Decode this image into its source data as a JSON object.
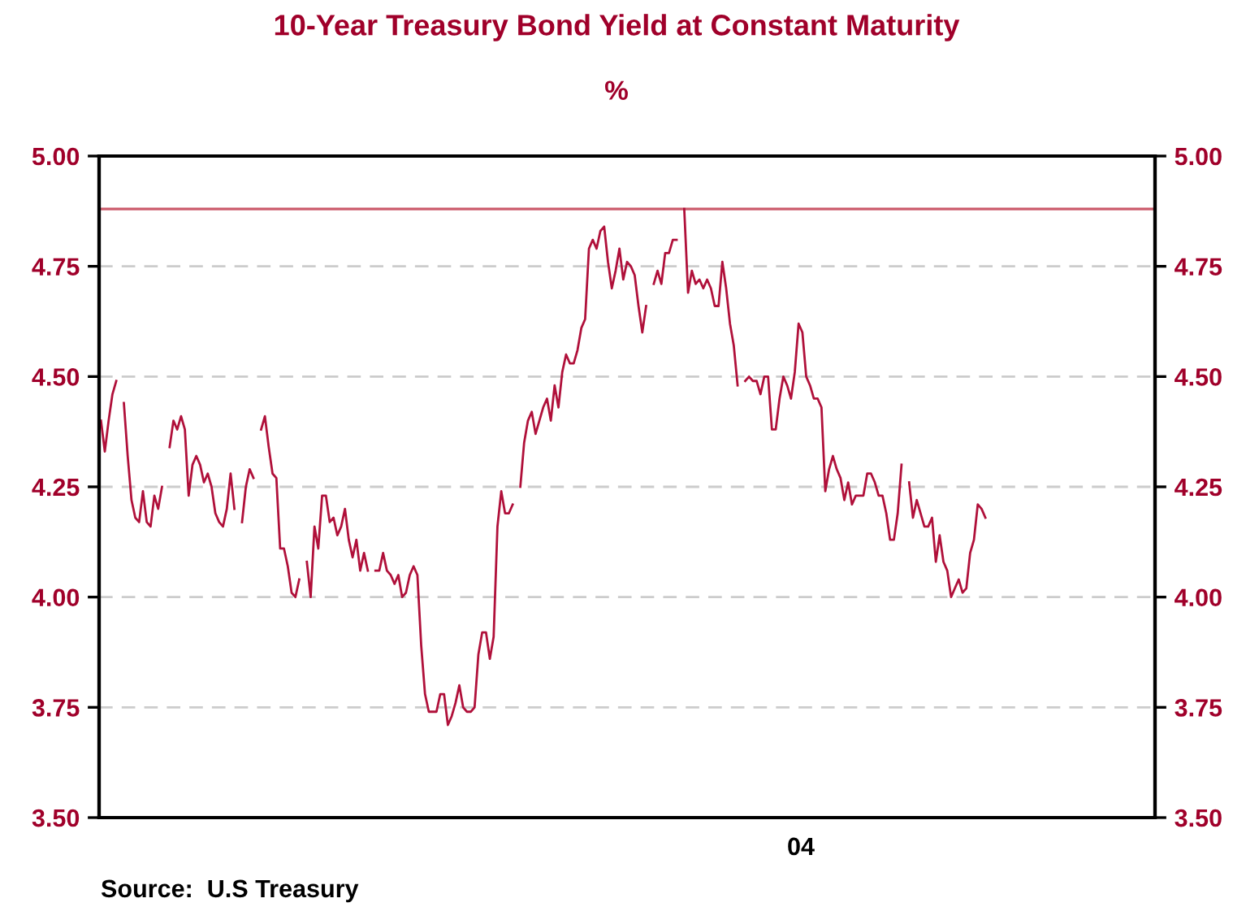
{
  "chart_data": {
    "type": "line",
    "title": "10-Year Treasury Bond Yield at Constant Maturity",
    "subtitle": "%",
    "annotations": [
      "04",
      "Source:  U.S Treasury"
    ],
    "categories": [
      null,
      null,
      null,
      null,
      null,
      null,
      null,
      null,
      null,
      null,
      null,
      null,
      null,
      null,
      null,
      null,
      null,
      null,
      null,
      null,
      null,
      null,
      null,
      null,
      null,
      null,
      null,
      null,
      null,
      null,
      null,
      null,
      null,
      null,
      null,
      null,
      null,
      null,
      null,
      null,
      null,
      null,
      null,
      null,
      null,
      null,
      null,
      null,
      null,
      null,
      null,
      null,
      null,
      null,
      null,
      null,
      null,
      null,
      null,
      null,
      null,
      null,
      null,
      null,
      null,
      null,
      null,
      null,
      null,
      null,
      null,
      null,
      null,
      null,
      null,
      null,
      null,
      null,
      null,
      null,
      null,
      null,
      null,
      null,
      null,
      null,
      null,
      null,
      null,
      null,
      null,
      null,
      null,
      null,
      null,
      null,
      null,
      null,
      null,
      null,
      null,
      null,
      null,
      null,
      null,
      null,
      null,
      null,
      null,
      null,
      null,
      null,
      null,
      null,
      null,
      null,
      null,
      null,
      null,
      null,
      null,
      null,
      null,
      null,
      null,
      null,
      null,
      null,
      null,
      null,
      null,
      null,
      null,
      null,
      null,
      null,
      null,
      null,
      null,
      null,
      null,
      null,
      null,
      null,
      null,
      null,
      null,
      null,
      null,
      null,
      null,
      null,
      null,
      null,
      null,
      null,
      null,
      null,
      null,
      null,
      null,
      null,
      null,
      null,
      null,
      null,
      null,
      null,
      null,
      null,
      null,
      null,
      null,
      null,
      null,
      null,
      null,
      null,
      null,
      null,
      null,
      null,
      null,
      null,
      null,
      null,
      null,
      null,
      null,
      null,
      null,
      null,
      null,
      null,
      null,
      null,
      null,
      null,
      null,
      null,
      null,
      null,
      null,
      null,
      null,
      null,
      null,
      null,
      null,
      null,
      null,
      null,
      null,
      null,
      null,
      null,
      null,
      null,
      null,
      null,
      null,
      null,
      null,
      null,
      null,
      null,
      null,
      null,
      null,
      null,
      null,
      null,
      null,
      null,
      null,
      null,
      null,
      null,
      null,
      null,
      null,
      null,
      null,
      null,
      null,
      null,
      null,
      null,
      null,
      null,
      null,
      null,
      null,
      null,
      null,
      null,
      null,
      null,
      null,
      null,
      null,
      null,
      null,
      null,
      null,
      null,
      null,
      null,
      null,
      null,
      null,
      null,
      null,
      null,
      null,
      null,
      null
    ],
    "series": [
      {
        "color": "#b0103a",
        "values": [
          4.4,
          4.33,
          4.4,
          4.46,
          4.49,
          null,
          4.44,
          4.32,
          4.22,
          4.18,
          4.17,
          4.24,
          4.17,
          4.16,
          4.23,
          4.2,
          4.25,
          null,
          4.34,
          4.4,
          4.38,
          4.41,
          4.38,
          4.23,
          4.3,
          4.32,
          4.3,
          4.26,
          4.28,
          4.25,
          4.19,
          4.17,
          4.16,
          4.2,
          4.28,
          4.2,
          null,
          4.17,
          4.25,
          4.29,
          4.27,
          null,
          4.38,
          4.41,
          4.34,
          4.28,
          4.27,
          4.11,
          4.11,
          4.07,
          4.01,
          4.0,
          4.04,
          null,
          4.08,
          4.0,
          4.16,
          4.11,
          4.23,
          4.23,
          4.17,
          4.18,
          4.14,
          4.16,
          4.2,
          4.13,
          4.09,
          4.13,
          4.06,
          4.1,
          4.06,
          null,
          4.06,
          4.06,
          4.1,
          4.06,
          4.05,
          4.03,
          4.05,
          4.0,
          4.01,
          4.05,
          4.07,
          4.05,
          3.89,
          3.78,
          3.74,
          3.74,
          3.74,
          3.78,
          3.78,
          3.71,
          3.73,
          3.76,
          3.8,
          3.75,
          3.74,
          3.74,
          3.75,
          3.87,
          3.92,
          3.92,
          3.86,
          3.91,
          4.16,
          4.24,
          4.19,
          4.19,
          4.21,
          null,
          4.25,
          4.35,
          4.4,
          4.42,
          4.37,
          4.4,
          4.43,
          4.45,
          4.4,
          4.48,
          4.43,
          4.51,
          4.55,
          4.53,
          4.53,
          4.56,
          4.61,
          4.63,
          4.79,
          4.81,
          4.79,
          4.83,
          4.84,
          4.76,
          4.7,
          4.74,
          4.79,
          4.72,
          4.76,
          4.75,
          4.73,
          4.66,
          4.6,
          4.66,
          null,
          4.71,
          4.74,
          4.71,
          4.78,
          4.78,
          4.81,
          4.81,
          null,
          4.88,
          4.69,
          4.74,
          4.71,
          4.72,
          4.7,
          4.72,
          4.7,
          4.66,
          4.66,
          4.76,
          4.7,
          4.62,
          4.57,
          4.48,
          null,
          4.49,
          4.5,
          4.49,
          4.49,
          4.46,
          4.5,
          4.5,
          4.38,
          4.38,
          4.45,
          4.5,
          4.48,
          4.45,
          4.51,
          4.62,
          4.6,
          4.5,
          4.48,
          4.45,
          4.45,
          4.43,
          4.24,
          4.29,
          4.32,
          4.29,
          4.27,
          4.22,
          4.26,
          4.21,
          4.23,
          4.23,
          4.23,
          4.28,
          4.28,
          4.26,
          4.23,
          4.23,
          4.19,
          4.13,
          4.13,
          4.19,
          4.3,
          null,
          4.26,
          4.18,
          4.22,
          4.19,
          4.16,
          4.16,
          4.18,
          4.08,
          4.14,
          4.08,
          4.06,
          4.0,
          4.02,
          4.04,
          4.01,
          4.02,
          4.1,
          4.13,
          4.21,
          4.2,
          4.18,
          null,
          null,
          null,
          null,
          null,
          null,
          null,
          null,
          null,
          null,
          null,
          null,
          null,
          null,
          null,
          null,
          null,
          null,
          null,
          null,
          null,
          null,
          null,
          null,
          null,
          null,
          null,
          null,
          null,
          null,
          null,
          null,
          null,
          null,
          null,
          null,
          null,
          null,
          null,
          null,
          null,
          null,
          null,
          null
        ]
      }
    ],
    "ylim": [
      3.5,
      5.0
    ],
    "yticks": [
      {
        "value": 3.5,
        "label": "3.50"
      },
      {
        "value": 3.75,
        "label": "3.75"
      },
      {
        "value": 4.0,
        "label": "4.00"
      },
      {
        "value": 4.25,
        "label": "4.25"
      },
      {
        "value": 4.5,
        "label": "4.50"
      },
      {
        "value": 4.75,
        "label": "4.75"
      },
      {
        "value": 5.0,
        "label": "5.00"
      }
    ],
    "y2lim": [
      3.5,
      5.0
    ],
    "y2ticks": [
      {
        "value": 3.5,
        "label": "3.50"
      },
      {
        "value": 3.75,
        "label": "3.75"
      },
      {
        "value": 4.0,
        "label": "4.00"
      },
      {
        "value": 4.25,
        "label": "4.25"
      },
      {
        "value": 4.5,
        "label": "4.50"
      },
      {
        "value": 4.75,
        "label": "4.75"
      },
      {
        "value": 5.0,
        "label": "5.00"
      }
    ],
    "ref_lines": [
      {
        "axis": "y",
        "value": 4.88,
        "label": null,
        "color": "#cc5c6c",
        "line_style": "solid"
      }
    ],
    "grid": "y",
    "line_style": "solid",
    "marker": "none"
  }
}
